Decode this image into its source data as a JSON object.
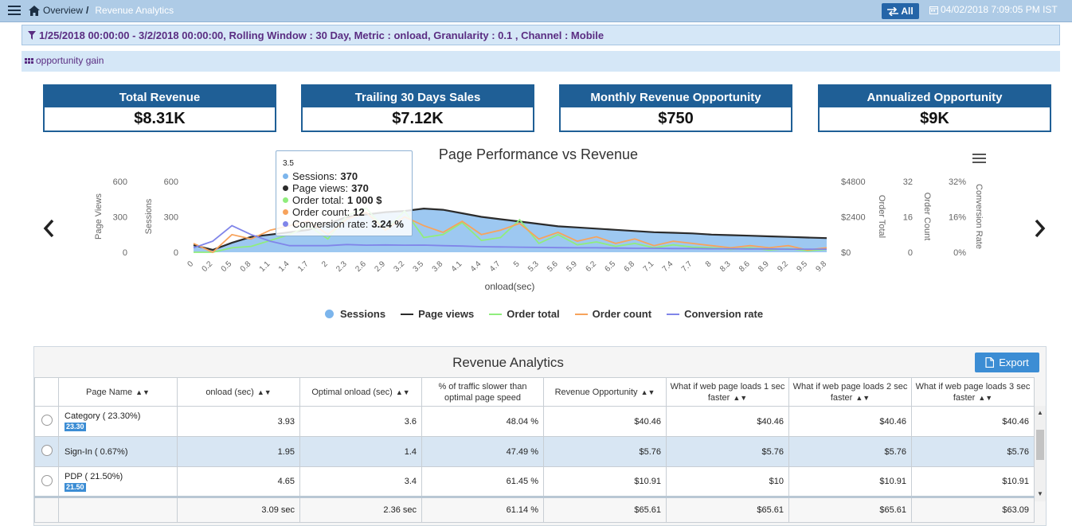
{
  "topbar": {
    "breadcrumb_home": "Overview",
    "breadcrumb_sep": "/",
    "breadcrumb_current": "Revenue Analytics",
    "all_button": "All",
    "datetime": "04/02/2018 7:09:05 PM IST"
  },
  "filter": {
    "text": "1/25/2018 00:00:00 - 3/2/2018 00:00:00, Rolling Window : 30 Day, Metric : onload, Granularity : 0.1 , Channel : Mobile"
  },
  "section": {
    "title": "opportunity gain"
  },
  "kpis": [
    {
      "label": "Total Revenue",
      "value": "$8.31K"
    },
    {
      "label": "Trailing 30 Days Sales",
      "value": "$7.12K"
    },
    {
      "label": "Monthly Revenue Opportunity",
      "value": "$750"
    },
    {
      "label": "Annualized Opportunity",
      "value": "$9K"
    }
  ],
  "chart_data": {
    "type": "area",
    "title": "Page Performance vs Revenue",
    "xlabel": "onload(sec)",
    "x_ticks": [
      "0",
      "0.2",
      "0.5",
      "0.8",
      "1.1",
      "1.4",
      "1.7",
      "2",
      "2.3",
      "2.6",
      "2.9",
      "3.2",
      "3.5",
      "3.8",
      "4.1",
      "4.4",
      "4.7",
      "5",
      "5.3",
      "5.6",
      "5.9",
      "6.2",
      "6.5",
      "6.8",
      "7.1",
      "7.4",
      "7.7",
      "8",
      "8.3",
      "8.6",
      "8.9",
      "9.2",
      "9.5",
      "9.8"
    ],
    "y_axes": [
      {
        "label": "Page Views",
        "ticks": [
          "0",
          "300",
          "600"
        ],
        "range": [
          0,
          600
        ]
      },
      {
        "label": "Sessions",
        "ticks": [
          "0",
          "300",
          "600"
        ],
        "range": [
          0,
          600
        ]
      },
      {
        "label": "Order Total",
        "ticks": [
          "$0",
          "$2400",
          "$4800"
        ],
        "range": [
          0,
          4800
        ]
      },
      {
        "label": "Order Count",
        "ticks": [
          "0",
          "16",
          "32"
        ],
        "range": [
          0,
          32
        ]
      },
      {
        "label": "Conversion Rate",
        "ticks": [
          "0%",
          "16%",
          "32%"
        ],
        "range": [
          0,
          32
        ]
      }
    ],
    "series": [
      {
        "name": "Sessions",
        "color": "#7cb5ec",
        "type": "area",
        "values": [
          60,
          20,
          80,
          130,
          150,
          170,
          190,
          240,
          300,
          320,
          340,
          350,
          370,
          360,
          330,
          300,
          280,
          260,
          240,
          220,
          210,
          200,
          190,
          180,
          170,
          165,
          160,
          150,
          145,
          140,
          135,
          130,
          125,
          120
        ]
      },
      {
        "name": "Page views",
        "color": "#2b2b2b",
        "type": "line",
        "values": [
          60,
          20,
          80,
          130,
          150,
          170,
          190,
          240,
          300,
          320,
          340,
          350,
          370,
          360,
          330,
          300,
          280,
          260,
          240,
          220,
          210,
          200,
          190,
          180,
          170,
          165,
          160,
          150,
          145,
          140,
          135,
          130,
          125,
          120
        ]
      },
      {
        "name": "Order total",
        "color": "#90ed7d",
        "type": "line",
        "values": [
          0,
          0,
          300,
          400,
          800,
          1200,
          1800,
          900,
          2500,
          3000,
          1500,
          2800,
          1000,
          1200,
          2000,
          800,
          1000,
          2200,
          600,
          1200,
          500,
          700,
          400,
          600,
          300,
          500,
          350,
          300,
          200,
          300,
          150,
          250,
          100,
          200
        ]
      },
      {
        "name": "Order count",
        "color": "#f7a35c",
        "type": "line",
        "values": [
          4,
          0,
          8,
          6,
          10,
          12,
          14,
          8,
          15,
          18,
          10,
          16,
          12,
          9,
          14,
          8,
          10,
          13,
          6,
          9,
          5,
          7,
          4,
          6,
          3,
          5,
          4,
          3,
          2,
          3,
          2,
          3,
          1,
          2
        ]
      },
      {
        "name": "Conversion rate",
        "color": "#8085e9",
        "type": "line",
        "values": [
          2,
          5,
          12,
          8,
          5,
          3,
          3,
          3,
          3.5,
          3.2,
          3.3,
          3.2,
          3.24,
          3,
          2.8,
          2.5,
          2.4,
          2.3,
          2.2,
          2.1,
          2,
          2,
          1.9,
          1.8,
          1.8,
          1.7,
          1.7,
          1.6,
          1.6,
          1.5,
          1.5,
          1.4,
          1.4,
          1.4
        ]
      }
    ],
    "legend_position": "bottom",
    "tooltip": {
      "x": "3.5",
      "rows": [
        {
          "name": "Sessions",
          "value": "370"
        },
        {
          "name": "Page views",
          "value": "370"
        },
        {
          "name": "Order total",
          "value": "1 000 $"
        },
        {
          "name": "Order count",
          "value": "12"
        },
        {
          "name": "Conversion rate",
          "value": "3.24 %"
        }
      ]
    }
  },
  "table": {
    "title": "Revenue Analytics",
    "export_label": "Export",
    "headers": [
      "Page Name",
      "onload (sec)",
      "Optimal onload (sec)",
      "% of traffic slower than optimal page speed",
      "Revenue Opportunity",
      "What if web page loads 1 sec faster",
      "What if web page loads 2 sec faster",
      "What if web page loads 3 sec faster"
    ],
    "rows": [
      {
        "name": "Category ( 23.30%)",
        "badge": "23.30",
        "onload": "3.93",
        "optimal": "3.6",
        "pct": "48.04 %",
        "opp": "$40.46",
        "w1": "$40.46",
        "w2": "$40.46",
        "w3": "$40.46"
      },
      {
        "name": "Sign-In ( 0.67%)",
        "badge": "",
        "onload": "1.95",
        "optimal": "1.4",
        "pct": "47.49 %",
        "opp": "$5.76",
        "w1": "$5.76",
        "w2": "$5.76",
        "w3": "$5.76"
      },
      {
        "name": "PDP ( 21.50%)",
        "badge": "21.50",
        "onload": "4.65",
        "optimal": "3.4",
        "pct": "61.45 %",
        "opp": "$10.91",
        "w1": "$10",
        "w2": "$10.91",
        "w3": "$10.91"
      }
    ],
    "footer": {
      "onload": "3.09 sec",
      "optimal": "2.36 sec",
      "pct": "61.14 %",
      "opp": "$65.61",
      "w1": "$65.61",
      "w2": "$65.61",
      "w3": "$63.09"
    }
  }
}
